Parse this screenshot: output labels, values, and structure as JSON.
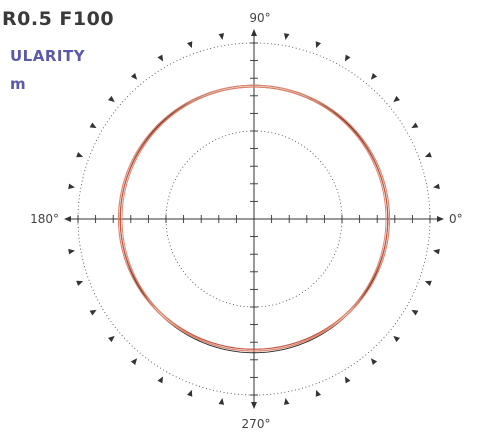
{
  "header": {
    "title": "R0.5 F100",
    "subtitle": "ULARITY",
    "unit": "m"
  },
  "colors": {
    "text": "#3a3a3a",
    "accent": "#5a5aa8",
    "axis": "#333333",
    "grid": "#555555",
    "reference_circle": "#222222",
    "series_1": "#e0876c",
    "series_2": "#c0574a"
  },
  "chart_data": {
    "type": "polar",
    "title": "",
    "angle_labels": [
      "0°",
      "90°",
      "180°",
      "270°"
    ],
    "axis_tick_count": 10,
    "grid": {
      "dotted_circles": true,
      "tick_marks": true,
      "direction_arrows": true
    },
    "series": [
      {
        "values": [
          0.76,
          0.76,
          0.76,
          0.76
        ]
      },
      {
        "values": [
          0.77,
          0.76,
          0.77,
          0.75
        ]
      },
      {
        "values": [
          0.76,
          0.75,
          0.76,
          0.74
        ]
      },
      {
        "values": [
          0.75,
          0.75,
          0.75,
          0.75
        ]
      }
    ]
  }
}
